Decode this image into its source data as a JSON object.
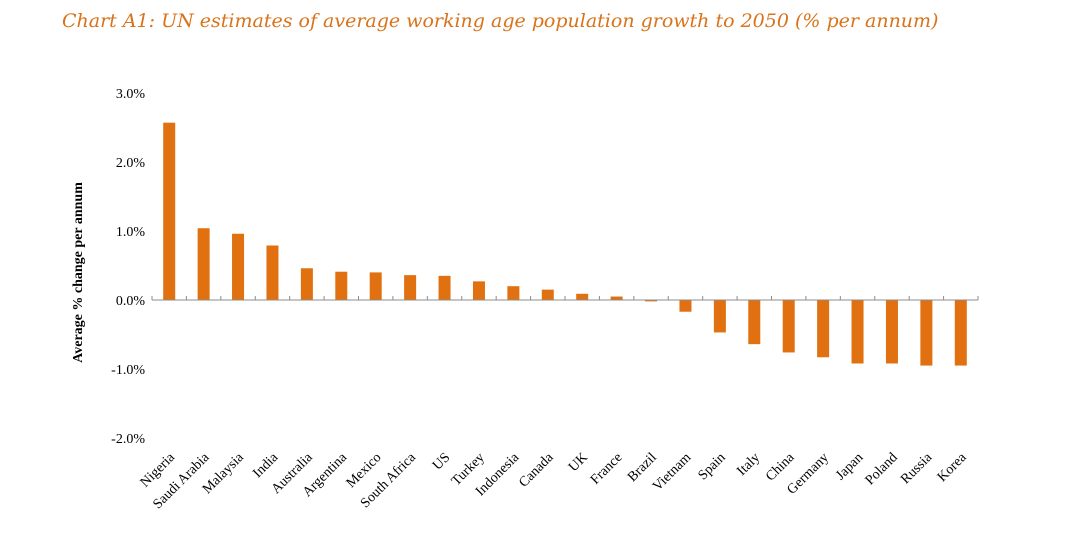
{
  "title": "Chart A1: UN estimates of average working age population growth to 2050 (% per annum)",
  "colors": {
    "bar": "#e07010",
    "title": "#d9731a",
    "axis": "#8c8c8c"
  },
  "chart_data": {
    "type": "bar",
    "ylabel": "Average % change per annum",
    "xlabel": "",
    "ylim": [
      -2.0,
      3.0
    ],
    "yticks": [
      3.0,
      2.0,
      1.0,
      0.0,
      -1.0,
      -2.0
    ],
    "ytick_labels": [
      "3.0%",
      "2.0%",
      "1.0%",
      "0.0%",
      "-1.0%",
      "-2.0%"
    ],
    "grid": false,
    "categories": [
      "Nigeria",
      "Saudi Arabia",
      "Malaysia",
      "India",
      "Australia",
      "Argentina",
      "Mexico",
      "South Africa",
      "US",
      "Turkey",
      "Indonesia",
      "Canada",
      "UK",
      "France",
      "Brazil",
      "Vietnam",
      "Spain",
      "Italy",
      "China",
      "Germany",
      "Japan",
      "Poland",
      "Russia",
      "Korea"
    ],
    "values": [
      2.57,
      1.04,
      0.96,
      0.79,
      0.46,
      0.41,
      0.4,
      0.36,
      0.35,
      0.27,
      0.2,
      0.15,
      0.09,
      0.05,
      -0.02,
      -0.17,
      -0.47,
      -0.64,
      -0.76,
      -0.83,
      -0.92,
      -0.92,
      -0.95,
      -0.95
    ]
  }
}
